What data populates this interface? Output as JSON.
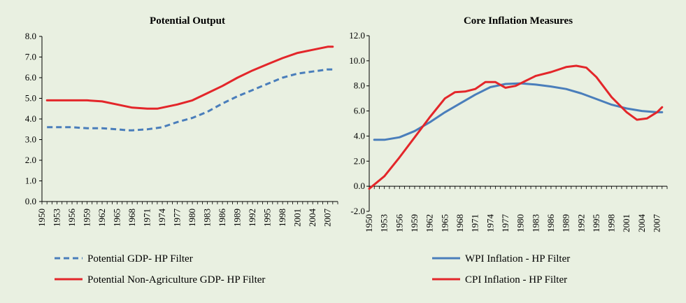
{
  "chart_data": [
    {
      "type": "line",
      "title": "Potential Output",
      "xlabel": "",
      "ylabel": "",
      "ylim": [
        0,
        8
      ],
      "yticks": [
        "0.0",
        "1.0",
        "2.0",
        "3.0",
        "4.0",
        "5.0",
        "6.0",
        "7.0",
        "8.0"
      ],
      "xlim": [
        1950,
        2009
      ],
      "xticks": [
        "1950",
        "1953",
        "1956",
        "1959",
        "1962",
        "1965",
        "1968",
        "1971",
        "1974",
        "1977",
        "1980",
        "1983",
        "1986",
        "1989",
        "1992",
        "1995",
        "1998",
        "2001",
        "2004",
        "2007"
      ],
      "grid": false,
      "legend": "bottom",
      "series": [
        {
          "name": "Potential GDP- HP Filter",
          "color": "#4a7ebb",
          "style": "dashed",
          "x": [
            1951,
            1953,
            1956,
            1959,
            1962,
            1965,
            1967,
            1968,
            1971,
            1974,
            1977,
            1980,
            1983,
            1986,
            1989,
            1992,
            1995,
            1998,
            2001,
            2004,
            2007,
            2008
          ],
          "values": [
            3.6,
            3.6,
            3.6,
            3.55,
            3.55,
            3.5,
            3.45,
            3.45,
            3.5,
            3.6,
            3.85,
            4.05,
            4.35,
            4.75,
            5.1,
            5.4,
            5.7,
            6.0,
            6.2,
            6.3,
            6.4,
            6.4
          ]
        },
        {
          "name": "Potential Non-Agriculture GDP- HP Filter",
          "color": "#e3262a",
          "style": "solid",
          "x": [
            1951,
            1953,
            1956,
            1959,
            1962,
            1965,
            1968,
            1971,
            1973,
            1974,
            1977,
            1980,
            1983,
            1986,
            1989,
            1992,
            1995,
            1998,
            2001,
            2004,
            2007,
            2008
          ],
          "values": [
            4.9,
            4.9,
            4.9,
            4.9,
            4.85,
            4.7,
            4.55,
            4.5,
            4.5,
            4.55,
            4.7,
            4.9,
            5.25,
            5.6,
            6.0,
            6.35,
            6.65,
            6.95,
            7.2,
            7.35,
            7.5,
            7.5
          ]
        }
      ]
    },
    {
      "type": "line",
      "title": "Core Inflation Measures",
      "xlabel": "",
      "ylabel": "",
      "ylim": [
        -2,
        12
      ],
      "yticks": [
        "-2.0",
        "0.0",
        "2.0",
        "4.0",
        "6.0",
        "8.0",
        "10.0",
        "12.0"
      ],
      "xlim": [
        1950,
        2009
      ],
      "xticks": [
        "1950",
        "1953",
        "1956",
        "1959",
        "1962",
        "1965",
        "1968",
        "1971",
        "1974",
        "1977",
        "1980",
        "1983",
        "1986",
        "1989",
        "1992",
        "1995",
        "1998",
        "2001",
        "2004",
        "2007"
      ],
      "grid": false,
      "legend": "bottom",
      "series": [
        {
          "name": "WPI Inflation - HP Filter",
          "color": "#4a7ebb",
          "style": "solid",
          "x": [
            1951,
            1953,
            1956,
            1959,
            1962,
            1965,
            1968,
            1971,
            1974,
            1977,
            1980,
            1983,
            1986,
            1989,
            1992,
            1995,
            1998,
            2001,
            2004,
            2007,
            2008
          ],
          "values": [
            3.7,
            3.7,
            3.9,
            4.4,
            5.1,
            5.9,
            6.6,
            7.3,
            7.9,
            8.15,
            8.2,
            8.1,
            7.95,
            7.75,
            7.4,
            6.95,
            6.5,
            6.2,
            6.0,
            5.9,
            5.9
          ]
        },
        {
          "name": "CPI Inflation - HP Filter",
          "color": "#e3262a",
          "style": "solid",
          "x": [
            1950,
            1953,
            1956,
            1959,
            1962,
            1965,
            1967,
            1969,
            1971,
            1973,
            1975,
            1977,
            1979,
            1981,
            1983,
            1986,
            1989,
            1991,
            1993,
            1995,
            1998,
            2001,
            2003,
            2005,
            2007,
            2008
          ],
          "values": [
            -0.2,
            0.8,
            2.3,
            3.9,
            5.5,
            7.0,
            7.5,
            7.55,
            7.75,
            8.3,
            8.3,
            7.85,
            8.0,
            8.4,
            8.8,
            9.1,
            9.5,
            9.6,
            9.45,
            8.7,
            7.1,
            5.9,
            5.3,
            5.4,
            5.9,
            6.3
          ]
        }
      ]
    }
  ]
}
